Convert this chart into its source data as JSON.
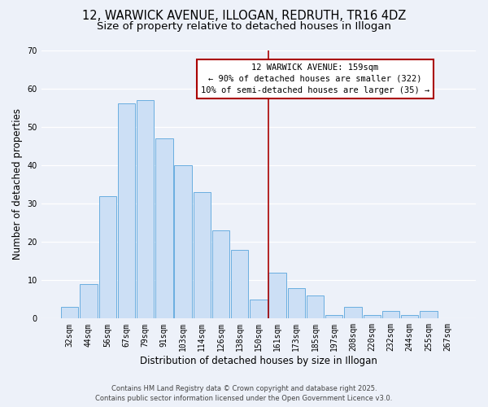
{
  "title": "12, WARWICK AVENUE, ILLOGAN, REDRUTH, TR16 4DZ",
  "subtitle": "Size of property relative to detached houses in Illogan",
  "xlabel": "Distribution of detached houses by size in Illogan",
  "ylabel": "Number of detached properties",
  "bar_labels": [
    "32sqm",
    "44sqm",
    "56sqm",
    "67sqm",
    "79sqm",
    "91sqm",
    "103sqm",
    "114sqm",
    "126sqm",
    "138sqm",
    "150sqm",
    "161sqm",
    "173sqm",
    "185sqm",
    "197sqm",
    "208sqm",
    "220sqm",
    "232sqm",
    "244sqm",
    "255sqm",
    "267sqm"
  ],
  "bar_values": [
    3,
    9,
    32,
    56,
    57,
    47,
    40,
    33,
    23,
    18,
    5,
    12,
    8,
    6,
    1,
    3,
    1,
    2,
    1,
    2,
    0
  ],
  "bar_color": "#ccdff5",
  "bar_edgecolor": "#6aaee0",
  "vline_x_index": 11,
  "vline_color": "#aa0000",
  "annotation_title": "12 WARWICK AVENUE: 159sqm",
  "annotation_line1": "← 90% of detached houses are smaller (322)",
  "annotation_line2": "10% of semi-detached houses are larger (35) →",
  "annotation_box_facecolor": "#ffffff",
  "annotation_box_edgecolor": "#aa0000",
  "ylim": [
    0,
    70
  ],
  "yticks": [
    0,
    10,
    20,
    30,
    40,
    50,
    60,
    70
  ],
  "footer1": "Contains HM Land Registry data © Crown copyright and database right 2025.",
  "footer2": "Contains public sector information licensed under the Open Government Licence v3.0.",
  "background_color": "#edf1f9",
  "grid_color": "#ffffff",
  "title_fontsize": 10.5,
  "subtitle_fontsize": 9.5,
  "axis_label_fontsize": 8.5,
  "tick_fontsize": 7,
  "annotation_fontsize": 7.5,
  "footer_fontsize": 6
}
